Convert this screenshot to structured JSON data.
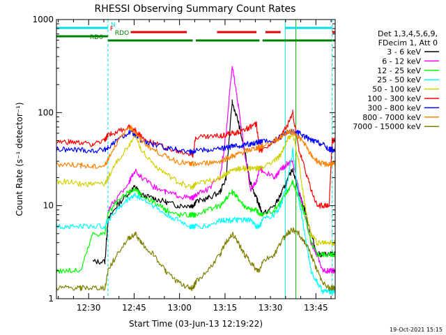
{
  "chart_data": {
    "type": "line",
    "title": "RHESSI Observing Summary Count Rates",
    "xlabel": "Start Time (03-Jun-13 12:19:22)",
    "ylabel": "Count Rate (s⁻¹ detector⁻¹)",
    "yscale": "log",
    "ylim": [
      1,
      1000
    ],
    "xlim_minutes": [
      0,
      92
    ],
    "x_ticks": [
      {
        "minute": 10.63,
        "label": "12:30"
      },
      {
        "minute": 25.63,
        "label": "12:45"
      },
      {
        "minute": 40.63,
        "label": "13:00"
      },
      {
        "minute": 55.63,
        "label": "13:15"
      },
      {
        "minute": 70.63,
        "label": "13:30"
      },
      {
        "minute": 85.63,
        "label": "13:45"
      }
    ],
    "y_ticks": [
      {
        "value": 1,
        "label": "1"
      },
      {
        "value": 10,
        "label": "10"
      },
      {
        "value": 100,
        "label": "100"
      },
      {
        "value": 1000,
        "label": "1000"
      }
    ],
    "legend_header": [
      "Det 1,3,4,5,6,9,",
      "FDecim 1, Att 0"
    ],
    "legend_placement": "right",
    "annotations": {
      "flags": [
        {
          "name": "N",
          "color": "#00e0e0",
          "level": 0,
          "intervals": [
            [
              0,
              17
            ],
            [
              75.5,
              91
            ]
          ]
        },
        {
          "name": "F",
          "color": "#e00000",
          "level": 1,
          "intervals": [
            [
              24.5,
              43
            ],
            [
              53,
              66
            ],
            [
              69,
              74
            ],
            [
              91,
              92
            ]
          ]
        },
        {
          "name": "RDO",
          "color": "#008000",
          "level": 2,
          "intervals": [
            [
              0,
              17
            ]
          ]
        },
        {
          "name": "RD6",
          "color": "#008000",
          "level": 3,
          "intervals": [
            [
              17,
              45
            ],
            [
              46,
              67
            ],
            [
              68,
              91
            ],
            [
              91.3,
              92
            ]
          ]
        }
      ],
      "vlines": [
        {
          "minute": 17,
          "color": "#00e0e0",
          "dashed": true
        },
        {
          "minute": 75.5,
          "color": "#00e0e0",
          "dashed": false
        },
        {
          "minute": 79,
          "color": "#00c000",
          "dashed": false
        },
        {
          "minute": 91,
          "color": "#00e0e0",
          "dashed": true
        }
      ]
    },
    "x": [
      0,
      4,
      8,
      12,
      16,
      17,
      20,
      24,
      26,
      28,
      32,
      36,
      40,
      44,
      45,
      46,
      50,
      54,
      56,
      58,
      60,
      62,
      64,
      66,
      67,
      68,
      72,
      74,
      76,
      78,
      80,
      82,
      84,
      86,
      88,
      90,
      91,
      92
    ],
    "series": [
      {
        "name": "3 - 6 keV",
        "color": "#000000",
        "values": [
          null,
          null,
          null,
          2.5,
          2.5,
          7,
          10,
          14,
          16,
          13,
          12,
          11,
          10,
          10,
          10,
          11,
          12,
          14,
          20,
          130,
          80,
          40,
          18,
          12,
          10,
          8,
          10,
          13,
          18,
          25,
          14,
          9,
          5,
          3,
          3,
          3,
          3,
          3
        ]
      },
      {
        "name": "6 - 12 keV",
        "color": "#ff00ff",
        "values": [
          null,
          null,
          null,
          null,
          null,
          9,
          12,
          18,
          24,
          20,
          16,
          14,
          13,
          12,
          12,
          13,
          15,
          20,
          60,
          320,
          120,
          40,
          15,
          18,
          25,
          24,
          20,
          24,
          28,
          30,
          15,
          8,
          4,
          3,
          2,
          2,
          2,
          2
        ]
      },
      {
        "name": "12 - 25 keV",
        "color": "#00ff00",
        "values": [
          2,
          2,
          2,
          5,
          5,
          8,
          11,
          14,
          15,
          13,
          11,
          9,
          8,
          8,
          8,
          8,
          9,
          10,
          12,
          14,
          12,
          10,
          9,
          9,
          8,
          8,
          9,
          11,
          14,
          18,
          12,
          8,
          4,
          3,
          3,
          3,
          3,
          3
        ]
      },
      {
        "name": "25 - 50 keV",
        "color": "#00ffff",
        "values": [
          6,
          6,
          6,
          6,
          6,
          7,
          9,
          12,
          13,
          12,
          10,
          8,
          7,
          6,
          6,
          6,
          6,
          7,
          7,
          7,
          7,
          7,
          7,
          6,
          6,
          7,
          8,
          10,
          16,
          40,
          12,
          5,
          2,
          1.5,
          1.2,
          1.2,
          1.2,
          1.2
        ]
      },
      {
        "name": "50 - 100 keV",
        "color": "#d0d000",
        "values": [
          18,
          18,
          17,
          17,
          17,
          20,
          30,
          45,
          60,
          40,
          28,
          22,
          18,
          16,
          16,
          17,
          18,
          20,
          22,
          24,
          25,
          25,
          25,
          25,
          25,
          26,
          30,
          35,
          50,
          60,
          30,
          10,
          5,
          4,
          4,
          4,
          4,
          4
        ]
      },
      {
        "name": "100 - 300 keV",
        "color": "#ff0000",
        "values": [
          48,
          48,
          47,
          46,
          50,
          58,
          62,
          70,
          65,
          55,
          48,
          42,
          38,
          36,
          35,
          55,
          55,
          56,
          58,
          60,
          62,
          65,
          70,
          75,
          40,
          40,
          50,
          55,
          70,
          100,
          40,
          25,
          15,
          10,
          10,
          10,
          50,
          50
        ]
      },
      {
        "name": "300 - 800 keV",
        "color": "#0000ff",
        "values": [
          40,
          40,
          40,
          39,
          40,
          42,
          50,
          62,
          58,
          50,
          45,
          42,
          40,
          38,
          38,
          40,
          40,
          41,
          42,
          43,
          44,
          45,
          46,
          48,
          48,
          48,
          50,
          55,
          62,
          62,
          60,
          55,
          50,
          48,
          45,
          40,
          40,
          40
        ]
      },
      {
        "name": "800 - 7000 keV",
        "color": "#ff8000",
        "values": [
          28,
          28,
          27,
          26,
          27,
          32,
          48,
          70,
          62,
          50,
          40,
          34,
          30,
          28,
          28,
          28,
          29,
          30,
          32,
          34,
          36,
          38,
          40,
          42,
          42,
          44,
          50,
          55,
          62,
          62,
          55,
          45,
          35,
          30,
          28,
          28,
          28,
          28
        ]
      },
      {
        "name": "7000 - 15000 keV",
        "color": "#808000",
        "values": [
          1.3,
          1.3,
          1.3,
          1.3,
          1.3,
          2.0,
          3.0,
          4.5,
          5.0,
          4.0,
          3.0,
          2.0,
          1.5,
          1.3,
          1.3,
          1.5,
          2.0,
          3.0,
          4.0,
          5.0,
          4.0,
          3.0,
          2.5,
          2.0,
          2.0,
          2.5,
          3.0,
          4.0,
          5.0,
          5.5,
          5.0,
          4.0,
          3.0,
          2.0,
          1.5,
          1.3,
          1.3,
          1.3
        ]
      }
    ]
  },
  "footer": {
    "timestamp": "19-Oct-2021 15:15"
  }
}
